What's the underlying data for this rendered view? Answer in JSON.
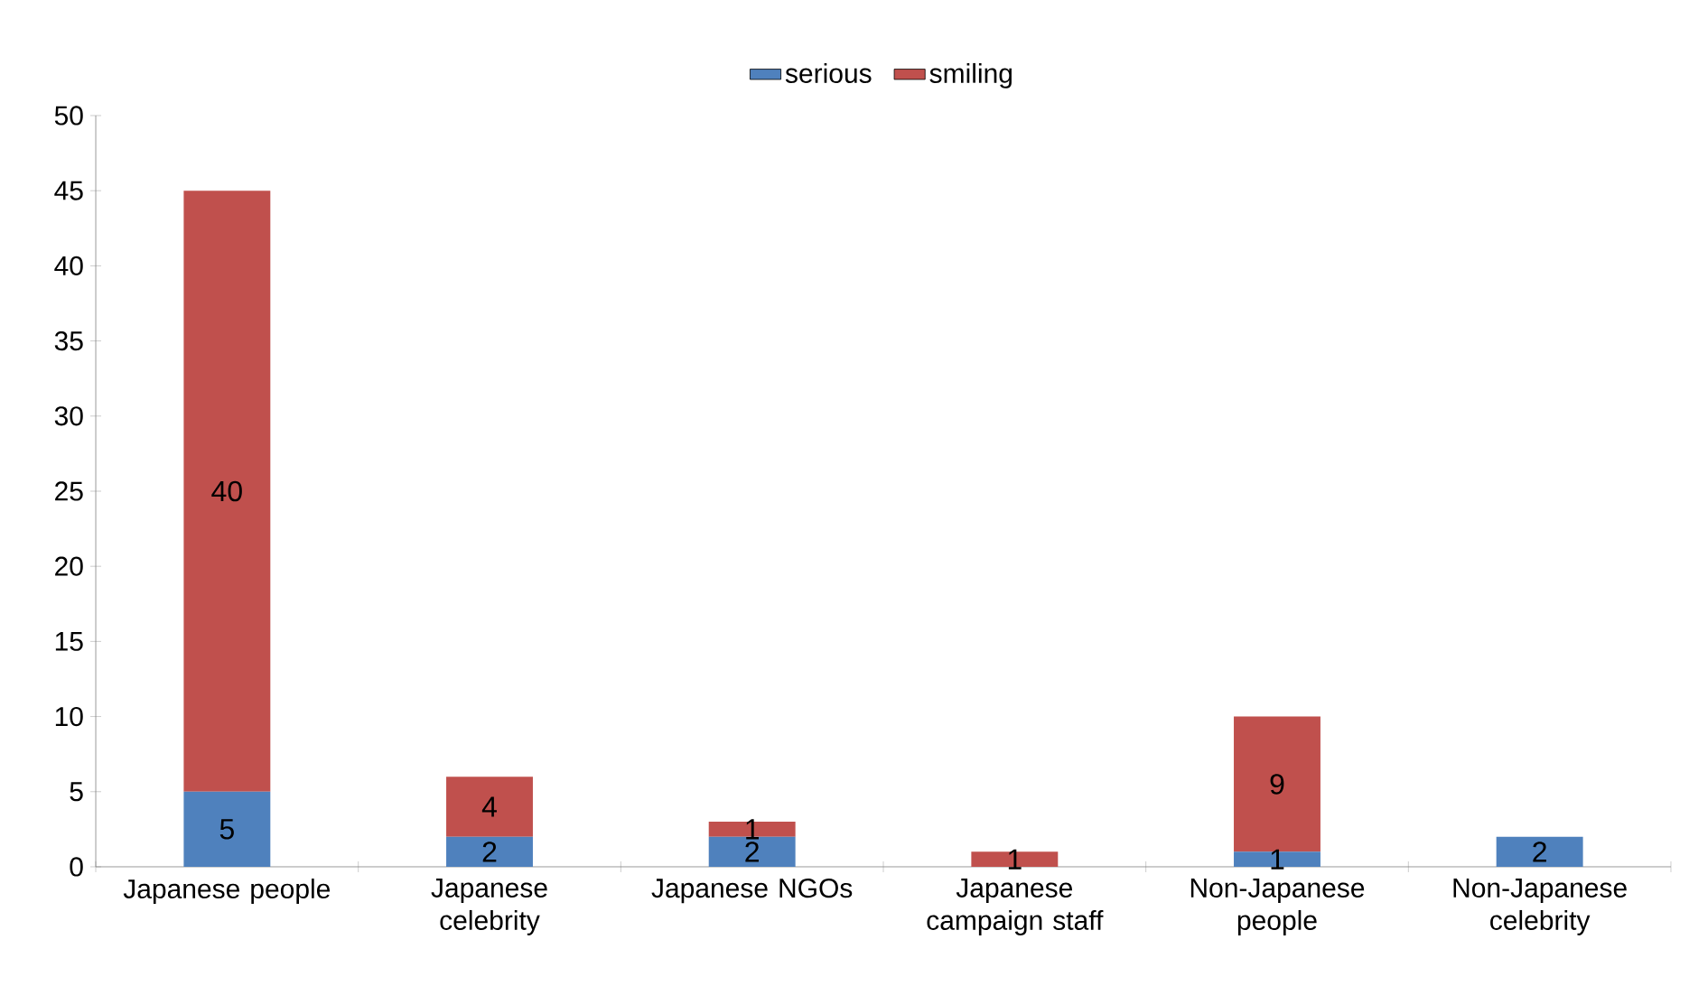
{
  "chart_data": {
    "type": "bar",
    "stacked": true,
    "categories": [
      "Japanese people",
      "Japanese celebrity",
      "Japanese NGOs",
      "Japanese campaign staff",
      "Non-Japanese people",
      "Non-Japanese celebrity"
    ],
    "series": [
      {
        "name": "serious",
        "color": "#4f81bd",
        "values": [
          5,
          2,
          2,
          0,
          1,
          2
        ],
        "value_labels": [
          "5",
          "2",
          "2",
          null,
          "1",
          "2"
        ]
      },
      {
        "name": "smiling",
        "color": "#c0504d",
        "values": [
          40,
          4,
          1,
          1,
          9,
          0
        ],
        "value_labels": [
          "40",
          "4",
          "1",
          "1",
          "9",
          null
        ]
      }
    ],
    "ylim": [
      0,
      50
    ],
    "yticks": [
      0,
      5,
      10,
      15,
      20,
      25,
      30,
      35,
      40,
      45,
      50
    ],
    "legend": "top"
  }
}
